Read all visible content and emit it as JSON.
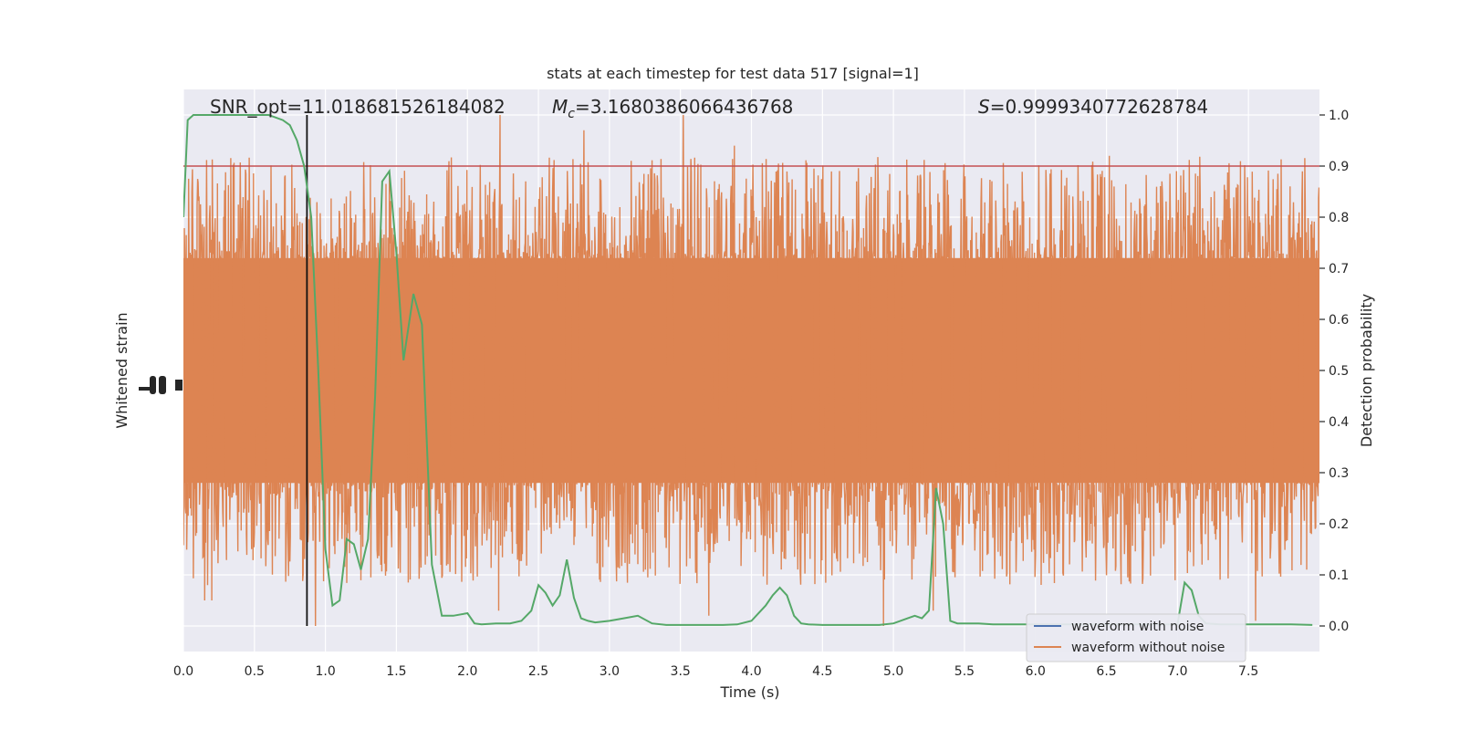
{
  "chart_data": {
    "type": "line",
    "title": "stats at each timestep for test data 517 [signal=1]",
    "xlabel": "Time (s)",
    "ylabel_left": "Whitened strain",
    "ylabel_right": "Detection probability",
    "xlim": [
      0.0,
      8.0
    ],
    "ylim_right": [
      -0.05,
      1.05
    ],
    "x_ticks": [
      "0.0",
      "0.5",
      "1.0",
      "1.5",
      "2.0",
      "2.5",
      "3.0",
      "3.5",
      "4.0",
      "4.5",
      "5.0",
      "5.5",
      "6.0",
      "6.5",
      "7.0",
      "7.5"
    ],
    "y_ticks_right": [
      "0.0",
      "0.1",
      "0.2",
      "0.3",
      "0.4",
      "0.5",
      "0.6",
      "0.7",
      "0.8",
      "0.9",
      "1.0"
    ],
    "grid": true,
    "background": "#eaeaf2",
    "threshold": {
      "value": 0.9,
      "color": "#c44e52"
    },
    "marker_time": 0.87,
    "annotations": {
      "snr": "SNR_opt=11.018681526184082",
      "mc_symbol": "M",
      "mc_sub": "c",
      "mc_value": "=3.1680386066436768",
      "s_symbol": "S",
      "s_value": "=0.9999340772628784"
    },
    "legend": {
      "position": "lower-right",
      "entries": [
        {
          "label": "waveform with noise",
          "color": "#4c72b0"
        },
        {
          "label": "waveform without noise",
          "color": "#dd8452"
        }
      ]
    },
    "series": [
      {
        "name": "waveform with noise",
        "color": "#4c72b0",
        "note_values": "hidden under orange series"
      },
      {
        "name": "waveform without noise",
        "color": "#dd8452",
        "noise_band": [
          0.28,
          0.72
        ],
        "seed": 517,
        "spikes": [
          {
            "t": 2.23,
            "v": 1.0
          },
          {
            "t": 2.82,
            "v": 0.97
          },
          {
            "t": 3.52,
            "v": 1.0
          },
          {
            "t": 3.88,
            "v": 0.94
          },
          {
            "t": 6.52,
            "v": 0.92
          },
          {
            "t": 1.45,
            "v": 0.89
          },
          {
            "t": 4.93,
            "v": 0.0
          },
          {
            "t": 0.93,
            "v": 0.0
          },
          {
            "t": 7.55,
            "v": 0.01
          },
          {
            "t": 0.2,
            "v": 0.05
          },
          {
            "t": 0.15,
            "v": 0.05
          },
          {
            "t": 3.7,
            "v": 0.02
          },
          {
            "t": 5.28,
            "v": 0.03
          },
          {
            "t": 2.22,
            "v": 0.03
          }
        ]
      },
      {
        "name": "detection probability",
        "color": "#55a868",
        "x": [
          0.0,
          0.03,
          0.07,
          0.12,
          0.2,
          0.3,
          0.4,
          0.5,
          0.6,
          0.7,
          0.75,
          0.8,
          0.85,
          0.9,
          0.95,
          1.0,
          1.05,
          1.1,
          1.15,
          1.2,
          1.25,
          1.3,
          1.35,
          1.4,
          1.45,
          1.5,
          1.55,
          1.62,
          1.68,
          1.75,
          1.82,
          1.9,
          2.0,
          2.05,
          2.1,
          2.2,
          2.3,
          2.38,
          2.45,
          2.5,
          2.55,
          2.6,
          2.65,
          2.7,
          2.75,
          2.8,
          2.85,
          2.9,
          3.0,
          3.1,
          3.2,
          3.3,
          3.4,
          3.5,
          3.6,
          3.7,
          3.8,
          3.9,
          4.0,
          4.1,
          4.15,
          4.2,
          4.25,
          4.3,
          4.35,
          4.4,
          4.5,
          4.6,
          4.7,
          4.8,
          4.9,
          5.0,
          5.1,
          5.15,
          5.2,
          5.25,
          5.3,
          5.35,
          5.4,
          5.45,
          5.5,
          5.6,
          5.7,
          5.8,
          5.9,
          6.0,
          6.1,
          6.2,
          6.3,
          6.4,
          6.5,
          6.6,
          6.7,
          6.8,
          6.9,
          7.0,
          7.05,
          7.1,
          7.15,
          7.2,
          7.3,
          7.4,
          7.5,
          7.6,
          7.7,
          7.8,
          7.95
        ],
        "y": [
          0.8,
          0.99,
          1.0,
          1.0,
          1.0,
          1.0,
          1.0,
          1.0,
          1.0,
          0.99,
          0.98,
          0.95,
          0.9,
          0.8,
          0.5,
          0.15,
          0.04,
          0.05,
          0.17,
          0.16,
          0.11,
          0.17,
          0.45,
          0.87,
          0.89,
          0.73,
          0.52,
          0.65,
          0.59,
          0.12,
          0.02,
          0.02,
          0.025,
          0.005,
          0.003,
          0.005,
          0.005,
          0.01,
          0.03,
          0.08,
          0.065,
          0.04,
          0.06,
          0.13,
          0.055,
          0.015,
          0.01,
          0.007,
          0.01,
          0.015,
          0.02,
          0.005,
          0.002,
          0.002,
          0.002,
          0.002,
          0.002,
          0.003,
          0.01,
          0.04,
          0.06,
          0.075,
          0.06,
          0.02,
          0.005,
          0.003,
          0.002,
          0.002,
          0.002,
          0.002,
          0.002,
          0.005,
          0.015,
          0.02,
          0.015,
          0.03,
          0.27,
          0.2,
          0.01,
          0.005,
          0.005,
          0.005,
          0.003,
          0.003,
          0.003,
          0.003,
          0.003,
          0.003,
          0.003,
          0.003,
          0.003,
          0.003,
          0.003,
          0.003,
          0.003,
          0.003,
          0.085,
          0.07,
          0.02,
          0.005,
          0.003,
          0.003,
          0.003,
          0.003,
          0.003,
          0.003,
          0.002
        ]
      }
    ]
  }
}
